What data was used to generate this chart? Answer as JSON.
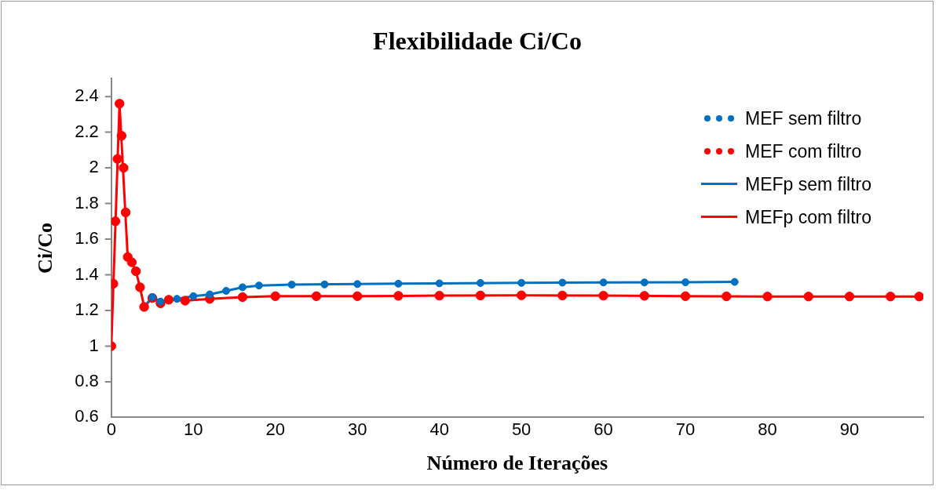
{
  "chart_data": {
    "type": "line",
    "title": "Flexibilidade Ci/Co",
    "xlabel": "Número de Iterações",
    "ylabel": "Ci/Co",
    "xlim": [
      0,
      99
    ],
    "xticks": [
      0,
      10,
      20,
      30,
      40,
      50,
      60,
      70,
      80,
      90
    ],
    "ylim": [
      0.6,
      2.5
    ],
    "yticks": [
      0.6,
      0.8,
      1,
      1.2,
      1.4,
      1.6,
      1.8,
      2,
      2.2,
      2.4
    ],
    "grid": false,
    "legend": "top right",
    "series": [
      {
        "name": "MEF sem filtro",
        "type": "scatter",
        "marker": "circle",
        "color": "#0070c0",
        "x": [
          5,
          6,
          8,
          10,
          12,
          14,
          16,
          18,
          22,
          26,
          30,
          35,
          40,
          45,
          50,
          55,
          60,
          65,
          70,
          76
        ],
        "values": [
          1.275,
          1.25,
          1.265,
          1.28,
          1.29,
          1.31,
          1.33,
          1.34,
          1.345,
          1.346,
          1.348,
          1.35,
          1.352,
          1.354,
          1.355,
          1.356,
          1.357,
          1.357,
          1.358,
          1.36
        ]
      },
      {
        "name": "MEF com filtro",
        "type": "scatter",
        "marker": "circle",
        "color": "#ff0000",
        "x": [
          0,
          0.25,
          0.5,
          0.75,
          1,
          1.25,
          1.5,
          1.75,
          2,
          2.5,
          3,
          3.5,
          4,
          5,
          6,
          7,
          9,
          12,
          16,
          20,
          25,
          30,
          35,
          40,
          45,
          50,
          55,
          60,
          65,
          70,
          75,
          80,
          85,
          90,
          95,
          98.5
        ],
        "values": [
          1.0,
          1.35,
          1.7,
          2.05,
          2.36,
          2.18,
          2.0,
          1.75,
          1.5,
          1.47,
          1.42,
          1.33,
          1.22,
          1.27,
          1.24,
          1.26,
          1.255,
          1.265,
          1.275,
          1.28,
          1.28,
          1.28,
          1.282,
          1.283,
          1.284,
          1.285,
          1.284,
          1.283,
          1.282,
          1.28,
          1.279,
          1.278,
          1.278,
          1.278,
          1.278,
          1.278
        ]
      },
      {
        "name": "MEFp sem filtro",
        "type": "line",
        "marker": "none",
        "line_style": "solid",
        "color": "#0070c0",
        "x": [
          4,
          5,
          6,
          8,
          10,
          12,
          14,
          16,
          18,
          22,
          30,
          40,
          50,
          60,
          70,
          76
        ],
        "values": [
          1.22,
          1.275,
          1.25,
          1.265,
          1.28,
          1.29,
          1.31,
          1.33,
          1.34,
          1.345,
          1.348,
          1.352,
          1.355,
          1.357,
          1.358,
          1.36
        ]
      },
      {
        "name": "MEFp com filtro",
        "type": "line",
        "marker": "none",
        "line_style": "solid",
        "color": "#ff0000",
        "x": [
          0,
          1,
          2,
          2.5,
          3,
          3.5,
          4,
          5,
          6,
          7,
          9,
          12,
          16,
          20,
          30,
          40,
          50,
          60,
          70,
          80,
          98.5
        ],
        "values": [
          1.0,
          2.36,
          1.5,
          1.47,
          1.42,
          1.33,
          1.22,
          1.27,
          1.24,
          1.26,
          1.255,
          1.265,
          1.275,
          1.28,
          1.28,
          1.283,
          1.285,
          1.283,
          1.28,
          1.278,
          1.278
        ]
      }
    ]
  }
}
